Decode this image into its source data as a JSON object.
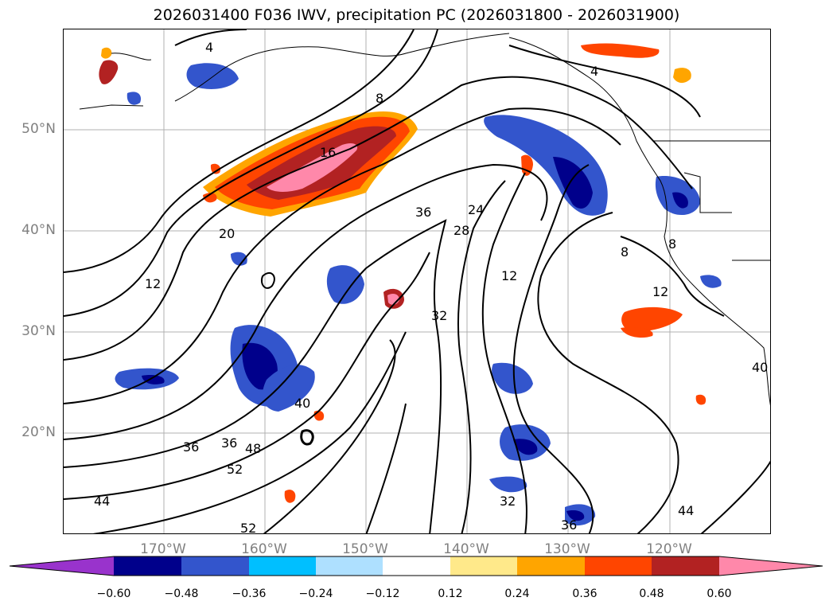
{
  "title": "2026031400 F036 IWV, precipitation PC (2026031800 - 2026031900)",
  "lat_labels": [
    "50°N",
    "40°N",
    "30°N",
    "20°N"
  ],
  "lon_labels": [
    "170°W",
    "160°W",
    "150°W",
    "140°W",
    "130°W",
    "120°W"
  ],
  "colorbar": {
    "ticks": [
      "−0.60",
      "−0.48",
      "−0.36",
      "−0.24",
      "−0.12",
      "0.12",
      "0.24",
      "0.36",
      "0.48",
      "0.60"
    ],
    "colors": [
      "#9933cc",
      "#00008b",
      "#3355cc",
      "#00bfff",
      "#aee0ff",
      "#ffffff",
      "#ffe98a",
      "#ffa500",
      "#ff4500",
      "#b22222",
      "#ff88aa"
    ]
  },
  "contour_labels": [
    "4",
    "4",
    "8",
    "16",
    "20",
    "12",
    "36",
    "28",
    "24",
    "12",
    "8",
    "8",
    "12",
    "32",
    "40",
    "36",
    "36",
    "48",
    "52",
    "44",
    "52",
    "32",
    "36",
    "44",
    "40"
  ]
}
